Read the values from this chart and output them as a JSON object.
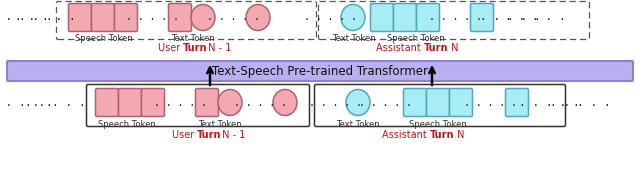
{
  "fig_width": 6.4,
  "fig_height": 1.71,
  "dpi": 100,
  "bg_color": "#ffffff",
  "pink_fill": "#f2aab0",
  "pink_edge": "#b06070",
  "cyan_fill": "#a8ecf4",
  "cyan_edge": "#50a8c0",
  "transformer_fill": "#b8b0f0",
  "transformer_edge": "#9080d0",
  "transformer_text": "Text-Speech Pre-trained Transformer",
  "transformer_text_size": 8.5,
  "label_fontsize": 6.0,
  "turn_fontsize": 7.0,
  "dots_color": "#222222",
  "arrow_color": "#111111",
  "user_color": "#cc1111",
  "assistant_color": "#cc1111",
  "speech_token_label": "Speech Token",
  "text_token_label": "Text Token",
  "user_label": "User Turn N - 1",
  "assistant_label": "Assistant Turn N"
}
